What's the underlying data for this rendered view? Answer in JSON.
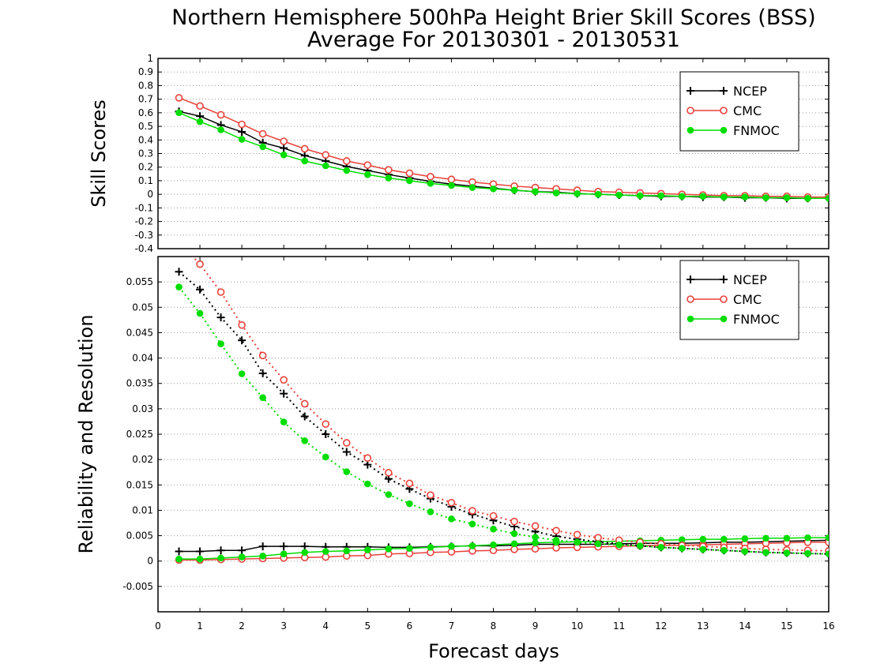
{
  "chart_data": {
    "title_line1": "Northern Hemisphere 500hPa Height Brier Skill Scores (BSS)",
    "title_line2": "Average For 20130301 - 20130531",
    "xlabel": "Forecast days",
    "x_ticks": [
      "0",
      "1",
      "2",
      "3",
      "4",
      "5",
      "6",
      "7",
      "8",
      "9",
      "10",
      "11",
      "12",
      "13",
      "14",
      "15",
      "16"
    ],
    "xlim": [
      0,
      16
    ],
    "x": [
      0.5,
      1,
      1.5,
      2,
      2.5,
      3,
      3.5,
      4,
      4.5,
      5,
      5.5,
      6,
      6.5,
      7,
      7.5,
      8,
      8.5,
      9,
      9.5,
      10,
      10.5,
      11,
      11.5,
      12,
      12.5,
      13,
      13.5,
      14,
      14.5,
      15,
      15.5,
      16
    ],
    "colors": {
      "NCEP": "#000000",
      "CMC": "#e8413a",
      "FNMOC": "#00dd00"
    },
    "charts": [
      {
        "type": "line",
        "ylabel": "Skill Scores",
        "ylim": [
          -0.4,
          1
        ],
        "y_ticks": [
          "-0.4",
          "-0.3",
          "-0.2",
          "-0.1",
          "0",
          "0.1",
          "0.2",
          "0.3",
          "0.4",
          "0.5",
          "0.6",
          "0.7",
          "0.8",
          "0.9",
          "1"
        ],
        "grid": true,
        "legend_position": "top-right",
        "series": [
          {
            "name": "NCEP",
            "marker": "plus",
            "values": [
              0.61,
              0.575,
              0.51,
              0.46,
              0.38,
              0.34,
              0.285,
              0.245,
              0.205,
              0.175,
              0.145,
              0.12,
              0.095,
              0.075,
              0.06,
              0.045,
              0.03,
              0.02,
              0.015,
              0.005,
              0.0,
              -0.005,
              -0.01,
              -0.015,
              -0.015,
              -0.02,
              -0.02,
              -0.025,
              -0.025,
              -0.03,
              -0.03,
              -0.03
            ]
          },
          {
            "name": "CMC",
            "marker": "open-circle",
            "values": [
              0.71,
              0.65,
              0.585,
              0.515,
              0.445,
              0.39,
              0.335,
              0.29,
              0.245,
              0.215,
              0.18,
              0.155,
              0.13,
              0.11,
              0.09,
              0.075,
              0.06,
              0.05,
              0.04,
              0.03,
              0.02,
              0.015,
              0.01,
              0.005,
              0.0,
              -0.005,
              -0.01,
              -0.01,
              -0.015,
              -0.015,
              -0.02,
              -0.02
            ]
          },
          {
            "name": "FNMOC",
            "marker": "filled-circle",
            "values": [
              0.6,
              0.535,
              0.475,
              0.405,
              0.35,
              0.29,
              0.245,
              0.21,
              0.175,
              0.145,
              0.12,
              0.1,
              0.08,
              0.065,
              0.05,
              0.04,
              0.03,
              0.02,
              0.01,
              0.005,
              0.0,
              -0.005,
              -0.01,
              -0.01,
              -0.015,
              -0.015,
              -0.02,
              -0.02,
              -0.025,
              -0.025,
              -0.03,
              -0.03
            ]
          }
        ]
      },
      {
        "type": "line",
        "ylabel": "Reliability and Resolution",
        "ylim": [
          -0.01,
          0.06
        ],
        "y_ticks": [
          "-0.005",
          "0",
          "0.005",
          "0.01",
          "0.015",
          "0.02",
          "0.025",
          "0.03",
          "0.035",
          "0.04",
          "0.045",
          "0.05",
          "0.055"
        ],
        "grid": true,
        "legend_position": "top-right",
        "series": [
          {
            "name": "NCEP",
            "marker": "plus",
            "style": "solid",
            "values": [
              0.0019,
              0.0019,
              0.0021,
              0.0021,
              0.0029,
              0.0029,
              0.0029,
              0.0028,
              0.0028,
              0.0028,
              0.0027,
              0.0027,
              0.0028,
              0.0029,
              0.003,
              0.003,
              0.0031,
              0.0033,
              0.0033,
              0.0033,
              0.0033,
              0.0034,
              0.0035,
              0.0035,
              0.0035,
              0.0036,
              0.0037,
              0.0037,
              0.0038,
              0.0039,
              0.004,
              0.0041
            ]
          },
          {
            "name": "CMC",
            "marker": "open-circle",
            "style": "solid",
            "values": [
              0.0002,
              0.0002,
              0.0003,
              0.0004,
              0.0005,
              0.0006,
              0.0007,
              0.0008,
              0.001,
              0.0011,
              0.0014,
              0.0015,
              0.0017,
              0.0018,
              0.002,
              0.0021,
              0.0023,
              0.0024,
              0.0026,
              0.0027,
              0.0028,
              0.0029,
              0.003,
              0.0031,
              0.0031,
              0.0032,
              0.0033,
              0.0034,
              0.0035,
              0.0036,
              0.0037,
              0.0037
            ]
          },
          {
            "name": "FNMOC",
            "marker": "filled-circle",
            "style": "solid",
            "values": [
              0.0004,
              0.0004,
              0.0006,
              0.0008,
              0.001,
              0.0014,
              0.0017,
              0.0019,
              0.002,
              0.0022,
              0.0024,
              0.0025,
              0.0027,
              0.0029,
              0.003,
              0.0032,
              0.0034,
              0.0036,
              0.0037,
              0.0038,
              0.0038,
              0.0039,
              0.004,
              0.0041,
              0.0042,
              0.0043,
              0.0043,
              0.0044,
              0.0045,
              0.0045,
              0.0046,
              0.0046
            ]
          },
          {
            "name": "NCEP",
            "marker": "plus",
            "style": "dotted",
            "values": [
              0.057,
              0.0535,
              0.048,
              0.0435,
              0.037,
              0.033,
              0.0285,
              0.025,
              0.0215,
              0.019,
              0.0162,
              0.0142,
              0.0123,
              0.0107,
              0.0092,
              0.008,
              0.0068,
              0.0058,
              0.0049,
              0.0043,
              0.0038,
              0.0034,
              0.003,
              0.0027,
              0.0025,
              0.0023,
              0.0021,
              0.0019,
              0.0017,
              0.0016,
              0.0015,
              0.0014
            ]
          },
          {
            "name": "CMC",
            "marker": "open-circle",
            "style": "dotted",
            "values": [
              0.063,
              0.0585,
              0.053,
              0.0465,
              0.0405,
              0.0357,
              0.031,
              0.027,
              0.0233,
              0.0203,
              0.0174,
              0.0153,
              0.013,
              0.0115,
              0.0099,
              0.0089,
              0.0078,
              0.0069,
              0.006,
              0.0052,
              0.0046,
              0.0041,
              0.0037,
              0.0034,
              0.0031,
              0.0029,
              0.0027,
              0.0025,
              0.0023,
              0.0022,
              0.0021,
              0.002
            ]
          },
          {
            "name": "FNMOC",
            "marker": "filled-circle",
            "style": "dotted",
            "values": [
              0.054,
              0.0488,
              0.0428,
              0.0369,
              0.0322,
              0.0274,
              0.0237,
              0.0205,
              0.0176,
              0.0152,
              0.0131,
              0.0113,
              0.0097,
              0.0083,
              0.0073,
              0.0063,
              0.0054,
              0.0047,
              0.0041,
              0.0037,
              0.0034,
              0.0032,
              0.003,
              0.0027,
              0.0025,
              0.0023,
              0.0021,
              0.0019,
              0.0017,
              0.0016,
              0.0015,
              0.0014
            ]
          }
        ]
      }
    ]
  }
}
